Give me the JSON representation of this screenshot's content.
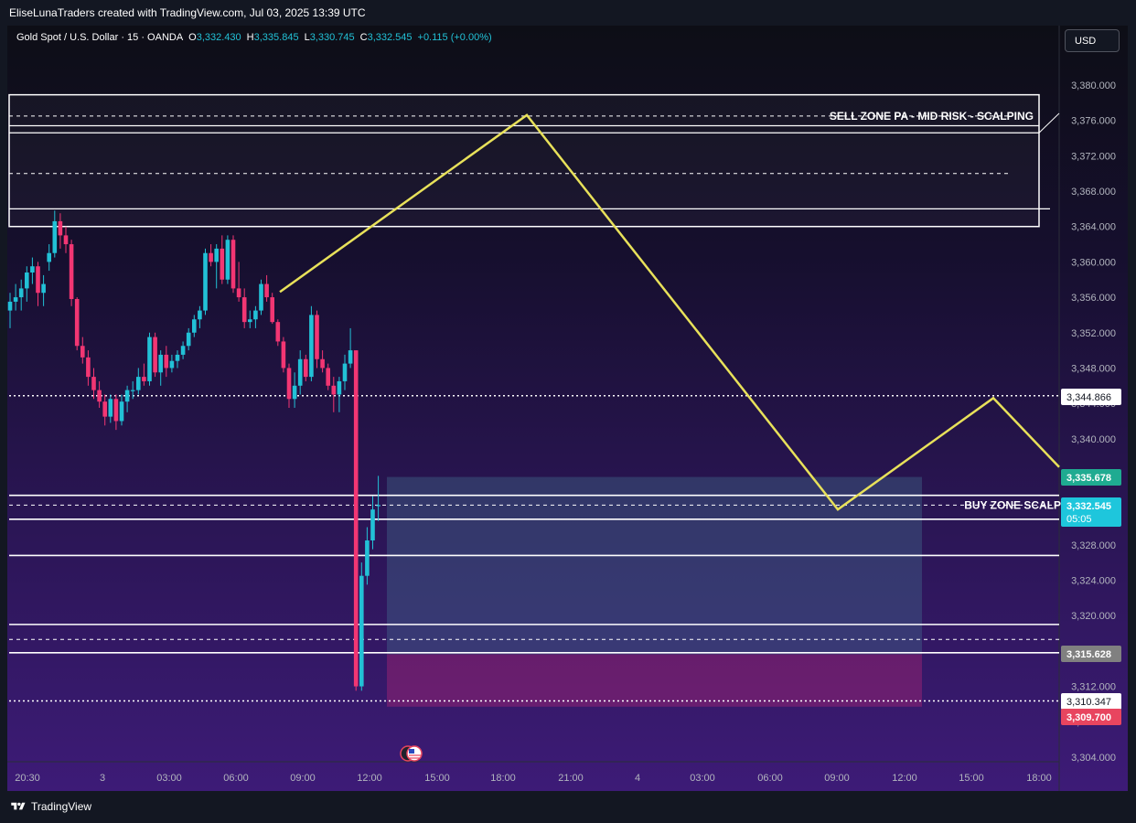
{
  "header": {
    "attribution": "EliseLunaTraders created with TradingView.com, Jul 03, 2025 13:39 UTC"
  },
  "legend": {
    "symbol": "Gold Spot / U.S. Dollar · 15 · OANDA",
    "open_label": "O",
    "open": "3,332.430",
    "high_label": "H",
    "high": "3,335.845",
    "low_label": "L",
    "low": "3,330.745",
    "close_label": "C",
    "close": "3,332.545",
    "change": "+0.115 (+0.00%)"
  },
  "currency_button": "USD",
  "footer": {
    "brand": "TradingView"
  },
  "colors": {
    "up": "#22c1d6",
    "down": "#f23673",
    "projection": "#e8e15a",
    "zone_line": "#ffffff",
    "label_teal": "#1fab91",
    "label_cyan": "#1ec6dc",
    "label_gray": "#808080",
    "label_red": "#e8455f",
    "label_white": "#ffffff"
  },
  "chart_data": {
    "type": "candlestick",
    "symbol": "XAUUSD",
    "timeframe": "15",
    "ylim": [
      3302,
      3383
    ],
    "y_ticks": [
      "3,380.000",
      "3,376.000",
      "3,372.000",
      "3,368.000",
      "3,364.000",
      "3,360.000",
      "3,356.000",
      "3,352.000",
      "3,348.000",
      "3,344.000",
      "3,340.000",
      "3,336.000",
      "3,332.000",
      "3,328.000",
      "3,324.000",
      "3,320.000",
      "3,316.000",
      "3,312.000",
      "3,308.000",
      "3,304.000"
    ],
    "x_ticks": [
      "20:30",
      "3",
      "03:00",
      "06:00",
      "09:00",
      "12:00",
      "15:00",
      "18:00",
      "21:00",
      "4",
      "03:00",
      "06:00",
      "09:00",
      "12:00",
      "15:00",
      "18:00"
    ],
    "candles": [
      {
        "o": 3354.5,
        "h": 3356.5,
        "l": 3352.5,
        "c": 3355.5
      },
      {
        "o": 3355.5,
        "h": 3357.5,
        "l": 3354.5,
        "c": 3356.0
      },
      {
        "o": 3356.0,
        "h": 3358.0,
        "l": 3354.5,
        "c": 3357.0
      },
      {
        "o": 3357.0,
        "h": 3359.5,
        "l": 3355.5,
        "c": 3358.8
      },
      {
        "o": 3358.8,
        "h": 3360.5,
        "l": 3357.5,
        "c": 3359.5
      },
      {
        "o": 3359.5,
        "h": 3360.0,
        "l": 3355.0,
        "c": 3356.5
      },
      {
        "o": 3356.5,
        "h": 3358.5,
        "l": 3355.0,
        "c": 3357.5
      },
      {
        "o": 3360.0,
        "h": 3362.0,
        "l": 3359.0,
        "c": 3361.0
      },
      {
        "o": 3361.0,
        "h": 3365.8,
        "l": 3360.5,
        "c": 3364.6
      },
      {
        "o": 3364.6,
        "h": 3365.5,
        "l": 3361.5,
        "c": 3363.0
      },
      {
        "o": 3363.0,
        "h": 3364.0,
        "l": 3361.0,
        "c": 3362.0
      },
      {
        "o": 3362.0,
        "h": 3362.5,
        "l": 3355.0,
        "c": 3355.8
      },
      {
        "o": 3355.8,
        "h": 3356.0,
        "l": 3350.0,
        "c": 3350.5
      },
      {
        "o": 3350.5,
        "h": 3351.5,
        "l": 3348.5,
        "c": 3349.2
      },
      {
        "o": 3349.2,
        "h": 3350.0,
        "l": 3346.0,
        "c": 3347.0
      },
      {
        "o": 3347.0,
        "h": 3348.0,
        "l": 3344.5,
        "c": 3345.5
      },
      {
        "o": 3345.5,
        "h": 3346.5,
        "l": 3343.5,
        "c": 3344.2
      },
      {
        "o": 3344.2,
        "h": 3345.0,
        "l": 3341.5,
        "c": 3342.5
      },
      {
        "o": 3342.5,
        "h": 3345.0,
        "l": 3341.8,
        "c": 3344.5
      },
      {
        "o": 3344.5,
        "h": 3345.0,
        "l": 3341.0,
        "c": 3342.0
      },
      {
        "o": 3342.0,
        "h": 3345.0,
        "l": 3341.5,
        "c": 3344.2
      },
      {
        "o": 3344.2,
        "h": 3346.0,
        "l": 3343.0,
        "c": 3345.5
      },
      {
        "o": 3345.5,
        "h": 3346.5,
        "l": 3344.5,
        "c": 3345.5
      },
      {
        "o": 3345.5,
        "h": 3348.0,
        "l": 3345.0,
        "c": 3347.0
      },
      {
        "o": 3347.0,
        "h": 3348.5,
        "l": 3346.0,
        "c": 3346.5
      },
      {
        "o": 3346.5,
        "h": 3352.0,
        "l": 3346.0,
        "c": 3351.5
      },
      {
        "o": 3351.5,
        "h": 3352.0,
        "l": 3347.0,
        "c": 3347.5
      },
      {
        "o": 3347.5,
        "h": 3350.0,
        "l": 3346.0,
        "c": 3349.5
      },
      {
        "o": 3349.5,
        "h": 3350.5,
        "l": 3347.0,
        "c": 3348.0
      },
      {
        "o": 3348.0,
        "h": 3349.5,
        "l": 3347.5,
        "c": 3348.8
      },
      {
        "o": 3348.8,
        "h": 3350.0,
        "l": 3348.0,
        "c": 3349.5
      },
      {
        "o": 3349.5,
        "h": 3351.0,
        "l": 3349.0,
        "c": 3350.5
      },
      {
        "o": 3350.5,
        "h": 3352.5,
        "l": 3350.0,
        "c": 3352.0
      },
      {
        "o": 3352.0,
        "h": 3354.0,
        "l": 3351.5,
        "c": 3353.5
      },
      {
        "o": 3353.5,
        "h": 3355.0,
        "l": 3352.5,
        "c": 3354.5
      },
      {
        "o": 3354.5,
        "h": 3361.5,
        "l": 3354.0,
        "c": 3361.0
      },
      {
        "o": 3361.0,
        "h": 3362.0,
        "l": 3359.5,
        "c": 3360.0
      },
      {
        "o": 3360.0,
        "h": 3362.0,
        "l": 3357.0,
        "c": 3361.5
      },
      {
        "o": 3361.5,
        "h": 3363.0,
        "l": 3357.5,
        "c": 3358.0
      },
      {
        "o": 3358.0,
        "h": 3363.0,
        "l": 3357.5,
        "c": 3362.5
      },
      {
        "o": 3362.5,
        "h": 3363.0,
        "l": 3356.5,
        "c": 3357.0
      },
      {
        "o": 3357.0,
        "h": 3360.0,
        "l": 3355.5,
        "c": 3356.0
      },
      {
        "o": 3356.0,
        "h": 3357.0,
        "l": 3352.5,
        "c": 3353.2
      },
      {
        "o": 3353.2,
        "h": 3354.5,
        "l": 3352.5,
        "c": 3353.5
      },
      {
        "o": 3353.5,
        "h": 3355.0,
        "l": 3352.5,
        "c": 3354.5
      },
      {
        "o": 3354.5,
        "h": 3358.0,
        "l": 3354.0,
        "c": 3357.5
      },
      {
        "o": 3357.5,
        "h": 3358.5,
        "l": 3355.5,
        "c": 3356.0
      },
      {
        "o": 3356.0,
        "h": 3356.5,
        "l": 3353.0,
        "c": 3353.2
      },
      {
        "o": 3353.2,
        "h": 3353.5,
        "l": 3350.5,
        "c": 3351.0
      },
      {
        "o": 3351.0,
        "h": 3351.5,
        "l": 3347.5,
        "c": 3348.0
      },
      {
        "o": 3348.0,
        "h": 3348.5,
        "l": 3343.5,
        "c": 3344.5
      },
      {
        "o": 3344.5,
        "h": 3347.5,
        "l": 3343.5,
        "c": 3346.0
      },
      {
        "o": 3346.0,
        "h": 3350.0,
        "l": 3345.0,
        "c": 3349.0
      },
      {
        "o": 3349.0,
        "h": 3349.5,
        "l": 3346.5,
        "c": 3347.0
      },
      {
        "o": 3347.0,
        "h": 3355.0,
        "l": 3346.5,
        "c": 3354.0
      },
      {
        "o": 3354.0,
        "h": 3354.5,
        "l": 3348.0,
        "c": 3349.0
      },
      {
        "o": 3349.0,
        "h": 3350.0,
        "l": 3347.5,
        "c": 3348.0
      },
      {
        "o": 3348.0,
        "h": 3348.5,
        "l": 3345.5,
        "c": 3346.0
      },
      {
        "o": 3346.0,
        "h": 3347.0,
        "l": 3343.0,
        "c": 3345.0
      },
      {
        "o": 3345.0,
        "h": 3347.0,
        "l": 3343.0,
        "c": 3346.5
      },
      {
        "o": 3346.5,
        "h": 3349.5,
        "l": 3345.5,
        "c": 3348.5
      },
      {
        "o": 3348.5,
        "h": 3352.5,
        "l": 3348.0,
        "c": 3350.0
      },
      {
        "o": 3350.0,
        "h": 3350.0,
        "l": 3311.5,
        "c": 3312.0
      },
      {
        "o": 3312.0,
        "h": 3326.0,
        "l": 3311.5,
        "c": 3324.5
      },
      {
        "o": 3324.5,
        "h": 3330.0,
        "l": 3323.5,
        "c": 3328.5
      },
      {
        "o": 3328.5,
        "h": 3333.5,
        "l": 3327.5,
        "c": 3332.0
      },
      {
        "o": 3332.4,
        "h": 3335.8,
        "l": 3330.7,
        "c": 3332.5
      }
    ],
    "projection_path": [
      {
        "t": "07:45",
        "y": 3356.6
      },
      {
        "t": "19:00",
        "y": 3376.6
      },
      {
        "t": "4 09:00",
        "y": 3332.0
      },
      {
        "t": "4 15:45",
        "y": 3344.6
      },
      {
        "t": "4 18:30",
        "y": 3336.8
      }
    ],
    "zones": [
      {
        "label": "SELL ZONE PA - MID RISK - SCALPING",
        "top": 3378.9,
        "bottom": 3364.0,
        "inner_lines": [
          3375.4,
          3374.6,
          3366.0
        ],
        "dashed": [
          3376.5,
          3370.0
        ]
      },
      {
        "label": "BUY ZONE SCALP",
        "lines": [
          3333.6,
          3330.9,
          3326.8,
          3319.0,
          3315.8
        ],
        "dashed": [
          3332.5,
          3317.3
        ]
      }
    ],
    "long_position": {
      "entry": 3315.628,
      "target": 3335.678,
      "stop": 3309.7
    },
    "price_lines": [
      {
        "value": 3344.866,
        "style": "dotted",
        "color": "#ffffff"
      },
      {
        "value": 3310.347,
        "style": "dotted",
        "color": "#ffffff"
      }
    ],
    "price_labels": [
      {
        "text": "3,344.866",
        "color": "label_white"
      },
      {
        "text": "3,335.678",
        "color": "label_teal"
      },
      {
        "text": "3,332.545",
        "sub": "05:05",
        "color": "label_cyan"
      },
      {
        "text": "3,315.628",
        "color": "label_gray"
      },
      {
        "text": "3,310.347",
        "color": "label_white"
      },
      {
        "text": "3,309.700",
        "color": "label_red"
      }
    ]
  }
}
